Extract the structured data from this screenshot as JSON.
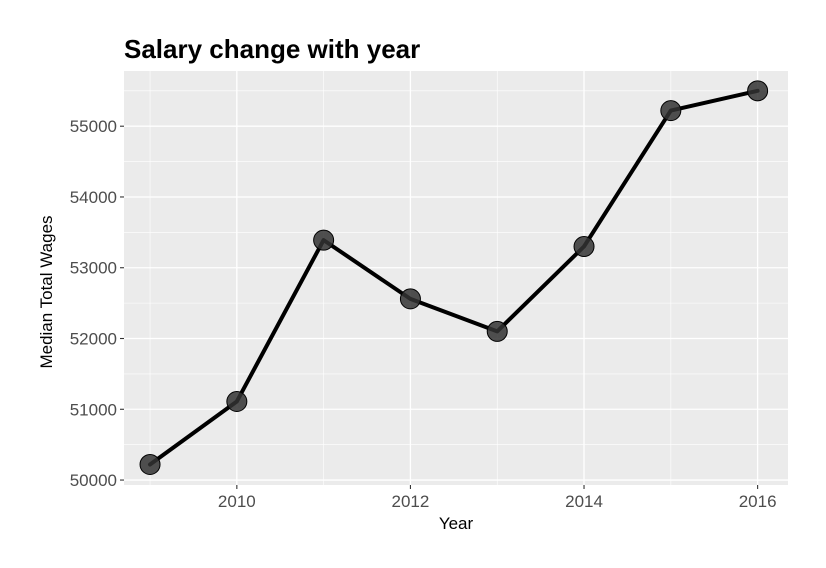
{
  "chart_data": {
    "type": "line",
    "title": "Salary change with year",
    "xlabel": "Year",
    "ylabel": "Median Total Wages",
    "x": [
      2009,
      2010,
      2011,
      2012,
      2013,
      2014,
      2015,
      2016
    ],
    "series": [
      {
        "values": [
          50220,
          51110,
          53390,
          52560,
          52100,
          53300,
          55220,
          55500
        ]
      }
    ],
    "x_ticks": [
      2010,
      2012,
      2014,
      2016
    ],
    "y_ticks": [
      50000,
      51000,
      52000,
      53000,
      54000,
      55000
    ],
    "xlim": [
      2008.7,
      2016.35
    ],
    "ylim": [
      49930,
      55780
    ],
    "grid": true,
    "legend": "none",
    "colors": {
      "panel": "#ebebeb",
      "grid": "#ffffff",
      "line": "#000000",
      "point": "#333333"
    }
  }
}
